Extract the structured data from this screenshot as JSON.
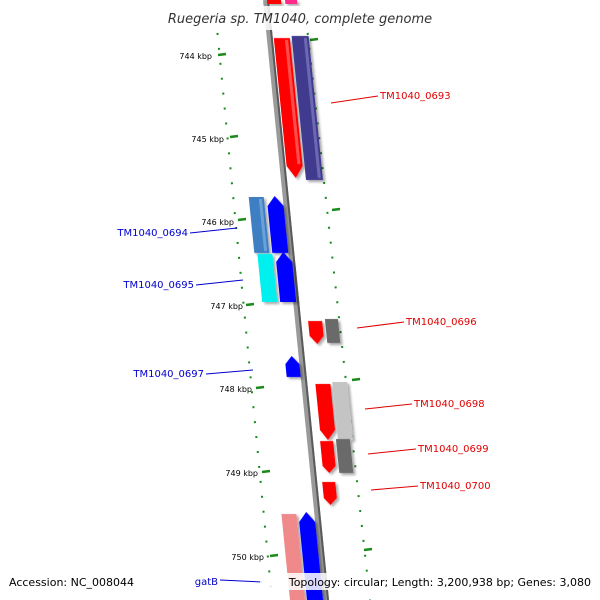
{
  "title": "Ruegeria sp. TM1040, complete genome",
  "footer": {
    "accession": "Accession: NC_008044",
    "summary": "Topology: circular; Length: 3,200,938 bp; Genes: 3,080"
  },
  "colors": {
    "backbone": "#808080",
    "ruler_ticks": "#1a8a1a",
    "label_red": "#e00000",
    "label_blue": "#0000cc"
  },
  "ruler_labels": [
    "744 kbp",
    "745 kbp",
    "746 kbp",
    "747 kbp",
    "748 kbp",
    "749 kbp",
    "750 kbp"
  ],
  "gene_labels": [
    {
      "name": "TM1040_0693",
      "side": "right"
    },
    {
      "name": "TM1040_0694",
      "side": "left"
    },
    {
      "name": "TM1040_0695",
      "side": "left"
    },
    {
      "name": "TM1040_0696",
      "side": "right"
    },
    {
      "name": "TM1040_0697",
      "side": "left"
    },
    {
      "name": "TM1040_0698",
      "side": "right"
    },
    {
      "name": "TM1040_0699",
      "side": "right"
    },
    {
      "name": "TM1040_0700",
      "side": "right"
    },
    {
      "name": "gatB",
      "side": "left"
    }
  ]
}
